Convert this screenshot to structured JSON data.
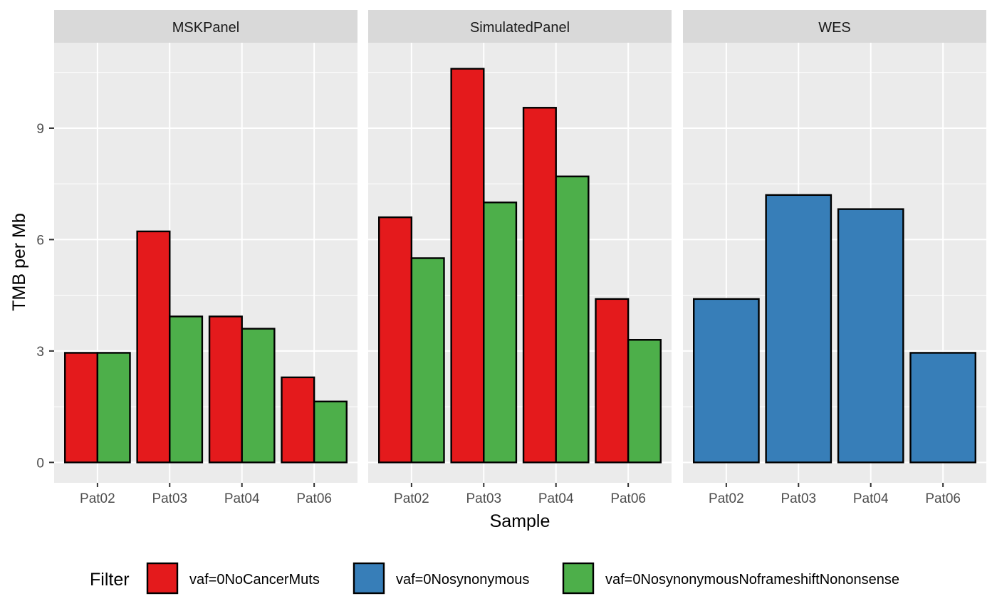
{
  "chart_data": {
    "type": "bar",
    "xlabel": "Sample",
    "ylabel": "TMB per Mb",
    "ylim": [
      -0.55,
      11.3
    ],
    "y_ticks": [
      0,
      3,
      6,
      9
    ],
    "y_tick_labels": [
      "0",
      "3",
      "6",
      "9"
    ],
    "grid": true,
    "categories": [
      "Pat02",
      "Pat03",
      "Pat04",
      "Pat06"
    ],
    "legend": {
      "title": "Filter",
      "position": "bottom",
      "entries": [
        {
          "label": "vaf=0NoCancerMuts",
          "color": "#E41A1C"
        },
        {
          "label": "vaf=0Nosynonymous",
          "color": "#377EB8"
        },
        {
          "label": "vaf=0NosynonymousNoframeshiftNononsense",
          "color": "#4DAF4A"
        }
      ]
    },
    "panels": [
      {
        "title": "MSKPanel",
        "series": [
          {
            "filter": "vaf=0NoCancerMuts",
            "values": [
              2.95,
              6.22,
              3.93,
              2.29
            ]
          },
          {
            "filter": "vaf=0NosynonymousNoframeshiftNononsense",
            "values": [
              2.95,
              3.93,
              3.6,
              1.64
            ]
          }
        ]
      },
      {
        "title": "SimulatedPanel",
        "series": [
          {
            "filter": "vaf=0NoCancerMuts",
            "values": [
              6.6,
              10.6,
              9.55,
              4.4
            ]
          },
          {
            "filter": "vaf=0NosynonymousNoframeshiftNononsense",
            "values": [
              5.5,
              7.0,
              7.7,
              3.3
            ]
          }
        ]
      },
      {
        "title": "WES",
        "series": [
          {
            "filter": "vaf=0Nosynonymous",
            "values": [
              4.4,
              7.2,
              6.82,
              2.95
            ]
          }
        ]
      }
    ]
  }
}
